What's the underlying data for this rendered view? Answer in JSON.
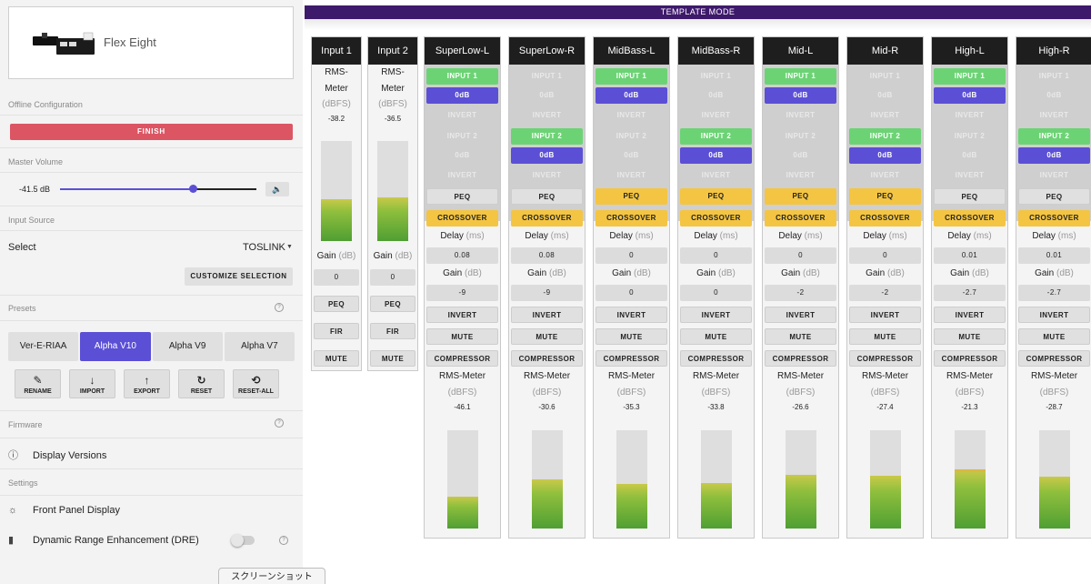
{
  "device": {
    "name": "Flex Eight"
  },
  "sidebar": {
    "offline_label": "Offline Configuration",
    "finish_label": "FINISH",
    "master_volume_label": "Master Volume",
    "volume_value": "-41.5 dB",
    "volume_level": 0.68,
    "speaker_icon": "🔈",
    "input_source_label": "Input Source",
    "select_label": "Select",
    "select_value": "TOSLINK",
    "customize_label": "CUSTOMIZE SELECTION",
    "presets_label": "Presets",
    "presets": [
      "Ver-E-RIAA",
      "Alpha V10",
      "Alpha V9",
      "Alpha V7"
    ],
    "active_preset": 1,
    "preset_actions": [
      {
        "label": "RENAME",
        "glyph": "✎"
      },
      {
        "label": "IMPORT",
        "glyph": "↓"
      },
      {
        "label": "EXPORT",
        "glyph": "↑"
      },
      {
        "label": "RESET",
        "glyph": "↻"
      },
      {
        "label": "RESET-ALL",
        "glyph": "⟲"
      }
    ],
    "firmware_label": "Firmware",
    "display_versions_label": "Display Versions",
    "settings_label": "Settings",
    "front_panel_label": "Front Panel Display",
    "dre_label": "Dynamic Range Enhancement (DRE)",
    "help_glyph": "?",
    "screenshot_label": "スクリーンショット"
  },
  "main": {
    "template_mode_label": "TEMPLATE MODE",
    "inputs": [
      {
        "name": "Input 1",
        "rms_label_1": "RMS-",
        "rms_label_2": "Meter",
        "rms_unit": "(dBFS)",
        "rms_value": "-38.2",
        "level": 0.42,
        "gain_label": "Gain",
        "gain_unit": "(dB)",
        "gain_value": "0",
        "peq": "PEQ",
        "fir": "FIR",
        "mute": "MUTE"
      },
      {
        "name": "Input 2",
        "rms_label_1": "RMS-",
        "rms_label_2": "Meter",
        "rms_unit": "(dBFS)",
        "rms_value": "-36.5",
        "level": 0.44,
        "gain_label": "Gain",
        "gain_unit": "(dB)",
        "gain_value": "0",
        "peq": "PEQ",
        "fir": "FIR",
        "mute": "MUTE"
      }
    ],
    "outputs": [
      {
        "name": "SuperLow-L",
        "in1": "INPUT 1",
        "in1_db": "0",
        "in1_on": true,
        "in2": "INPUT 2",
        "in2_db": "0",
        "in2_on": false,
        "invert": "INVERT",
        "peq": "PEQ",
        "peq_on": false,
        "crossover": "CROSSOVER",
        "delay_label": "Delay",
        "delay_unit": "(ms)",
        "delay_value": "0.08",
        "gain_label": "Gain",
        "gain_unit": "(dB)",
        "gain_value": "-9",
        "invert_btn": "INVERT",
        "mute": "MUTE",
        "compressor": "COMPRESSOR",
        "rms_label": "RMS-Meter",
        "rms_unit": "(dBFS)",
        "rms_value": "-46.1",
        "level": 0.32
      },
      {
        "name": "SuperLow-R",
        "in1": "INPUT 1",
        "in1_db": "0",
        "in1_on": false,
        "in2": "INPUT 2",
        "in2_db": "0",
        "in2_on": true,
        "invert": "INVERT",
        "peq": "PEQ",
        "peq_on": false,
        "crossover": "CROSSOVER",
        "delay_label": "Delay",
        "delay_unit": "(ms)",
        "delay_value": "0.08",
        "gain_label": "Gain",
        "gain_unit": "(dB)",
        "gain_value": "-9",
        "invert_btn": "INVERT",
        "mute": "MUTE",
        "compressor": "COMPRESSOR",
        "rms_label": "RMS-Meter",
        "rms_unit": "(dBFS)",
        "rms_value": "-30.6",
        "level": 0.5
      },
      {
        "name": "MidBass-L",
        "in1": "INPUT 1",
        "in1_db": "0",
        "in1_on": true,
        "in2": "INPUT 2",
        "in2_db": "0",
        "in2_on": false,
        "invert": "INVERT",
        "peq": "PEQ",
        "peq_on": true,
        "crossover": "CROSSOVER",
        "delay_label": "Delay",
        "delay_unit": "(ms)",
        "delay_value": "0",
        "gain_label": "Gain",
        "gain_unit": "(dB)",
        "gain_value": "0",
        "invert_btn": "INVERT",
        "mute": "MUTE",
        "compressor": "COMPRESSOR",
        "rms_label": "RMS-Meter",
        "rms_unit": "(dBFS)",
        "rms_value": "-35.3",
        "level": 0.45
      },
      {
        "name": "MidBass-R",
        "in1": "INPUT 1",
        "in1_db": "0",
        "in1_on": false,
        "in2": "INPUT 2",
        "in2_db": "0",
        "in2_on": true,
        "invert": "INVERT",
        "peq": "PEQ",
        "peq_on": true,
        "crossover": "CROSSOVER",
        "delay_label": "Delay",
        "delay_unit": "(ms)",
        "delay_value": "0",
        "gain_label": "Gain",
        "gain_unit": "(dB)",
        "gain_value": "0",
        "invert_btn": "INVERT",
        "mute": "MUTE",
        "compressor": "COMPRESSOR",
        "rms_label": "RMS-Meter",
        "rms_unit": "(dBFS)",
        "rms_value": "-33.8",
        "level": 0.46
      },
      {
        "name": "Mid-L",
        "in1": "INPUT 1",
        "in1_db": "0",
        "in1_on": true,
        "in2": "INPUT 2",
        "in2_db": "0",
        "in2_on": false,
        "invert": "INVERT",
        "peq": "PEQ",
        "peq_on": true,
        "crossover": "CROSSOVER",
        "delay_label": "Delay",
        "delay_unit": "(ms)",
        "delay_value": "0",
        "gain_label": "Gain",
        "gain_unit": "(dB)",
        "gain_value": "-2",
        "invert_btn": "INVERT",
        "mute": "MUTE",
        "compressor": "COMPRESSOR",
        "rms_label": "RMS-Meter",
        "rms_unit": "(dBFS)",
        "rms_value": "-26.6",
        "level": 0.55
      },
      {
        "name": "Mid-R",
        "in1": "INPUT 1",
        "in1_db": "0",
        "in1_on": false,
        "in2": "INPUT 2",
        "in2_db": "0",
        "in2_on": true,
        "invert": "INVERT",
        "peq": "PEQ",
        "peq_on": true,
        "crossover": "CROSSOVER",
        "delay_label": "Delay",
        "delay_unit": "(ms)",
        "delay_value": "0",
        "gain_label": "Gain",
        "gain_unit": "(dB)",
        "gain_value": "-2",
        "invert_btn": "INVERT",
        "mute": "MUTE",
        "compressor": "COMPRESSOR",
        "rms_label": "RMS-Meter",
        "rms_unit": "(dBFS)",
        "rms_value": "-27.4",
        "level": 0.54
      },
      {
        "name": "High-L",
        "in1": "INPUT 1",
        "in1_db": "0",
        "in1_on": true,
        "in2": "INPUT 2",
        "in2_db": "0",
        "in2_on": false,
        "invert": "INVERT",
        "peq": "PEQ",
        "peq_on": false,
        "crossover": "CROSSOVER",
        "delay_label": "Delay",
        "delay_unit": "(ms)",
        "delay_value": "0.01",
        "gain_label": "Gain",
        "gain_unit": "(dB)",
        "gain_value": "-2.7",
        "invert_btn": "INVERT",
        "mute": "MUTE",
        "compressor": "COMPRESSOR",
        "rms_label": "RMS-Meter",
        "rms_unit": "(dBFS)",
        "rms_value": "-21.3",
        "level": 0.6,
        "cap": true
      },
      {
        "name": "High-R",
        "in1": "INPUT 1",
        "in1_db": "0",
        "in1_on": false,
        "in2": "INPUT 2",
        "in2_db": "0",
        "in2_on": true,
        "invert": "INVERT",
        "peq": "PEQ",
        "peq_on": false,
        "crossover": "CROSSOVER",
        "delay_label": "Delay",
        "delay_unit": "(ms)",
        "delay_value": "0.01",
        "gain_label": "Gain",
        "gain_unit": "(dB)",
        "gain_value": "-2.7",
        "invert_btn": "INVERT",
        "mute": "MUTE",
        "compressor": "COMPRESSOR",
        "rms_label": "RMS-Meter",
        "rms_unit": "(dBFS)",
        "rms_value": "-28.7",
        "level": 0.53
      }
    ]
  },
  "colors": {
    "accent": "#5b4fd6",
    "finish": "#dc5563",
    "active_green": "#6cd375",
    "active_yellow": "#f4c542",
    "template_bar": "#3e1a6b"
  }
}
